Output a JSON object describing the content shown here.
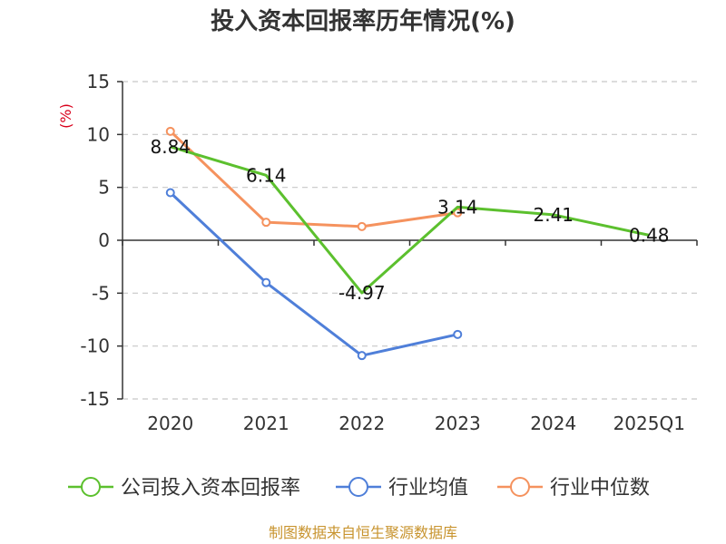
{
  "chart_data": {
    "type": "line",
    "title": "投入资本回报率历年情况(%)",
    "unit_label": "(%)",
    "categories": [
      "2020",
      "2021",
      "2022",
      "2023",
      "2024",
      "2025Q1"
    ],
    "ylim": [
      -15,
      15
    ],
    "yticks": [
      15,
      10,
      5,
      0,
      -5,
      -10,
      -15
    ],
    "grid": true,
    "legend_position": "bottom",
    "series": [
      {
        "name": "公司投入资本回报率",
        "color": "#5cc02e",
        "values": [
          8.84,
          6.14,
          -4.97,
          3.14,
          2.41,
          0.48
        ],
        "labels": [
          "8.84",
          "6.14",
          "-4.97",
          "3.14",
          "2.41",
          "0.48"
        ]
      },
      {
        "name": "行业均值",
        "color": "#4f7fd9",
        "values": [
          4.5,
          -4.0,
          -10.9,
          -8.9,
          null,
          null
        ]
      },
      {
        "name": "行业中位数",
        "color": "#f5925e",
        "values": [
          10.3,
          1.7,
          1.3,
          2.6,
          null,
          null
        ]
      }
    ]
  },
  "source": "制图数据来自恒生聚源数据库"
}
